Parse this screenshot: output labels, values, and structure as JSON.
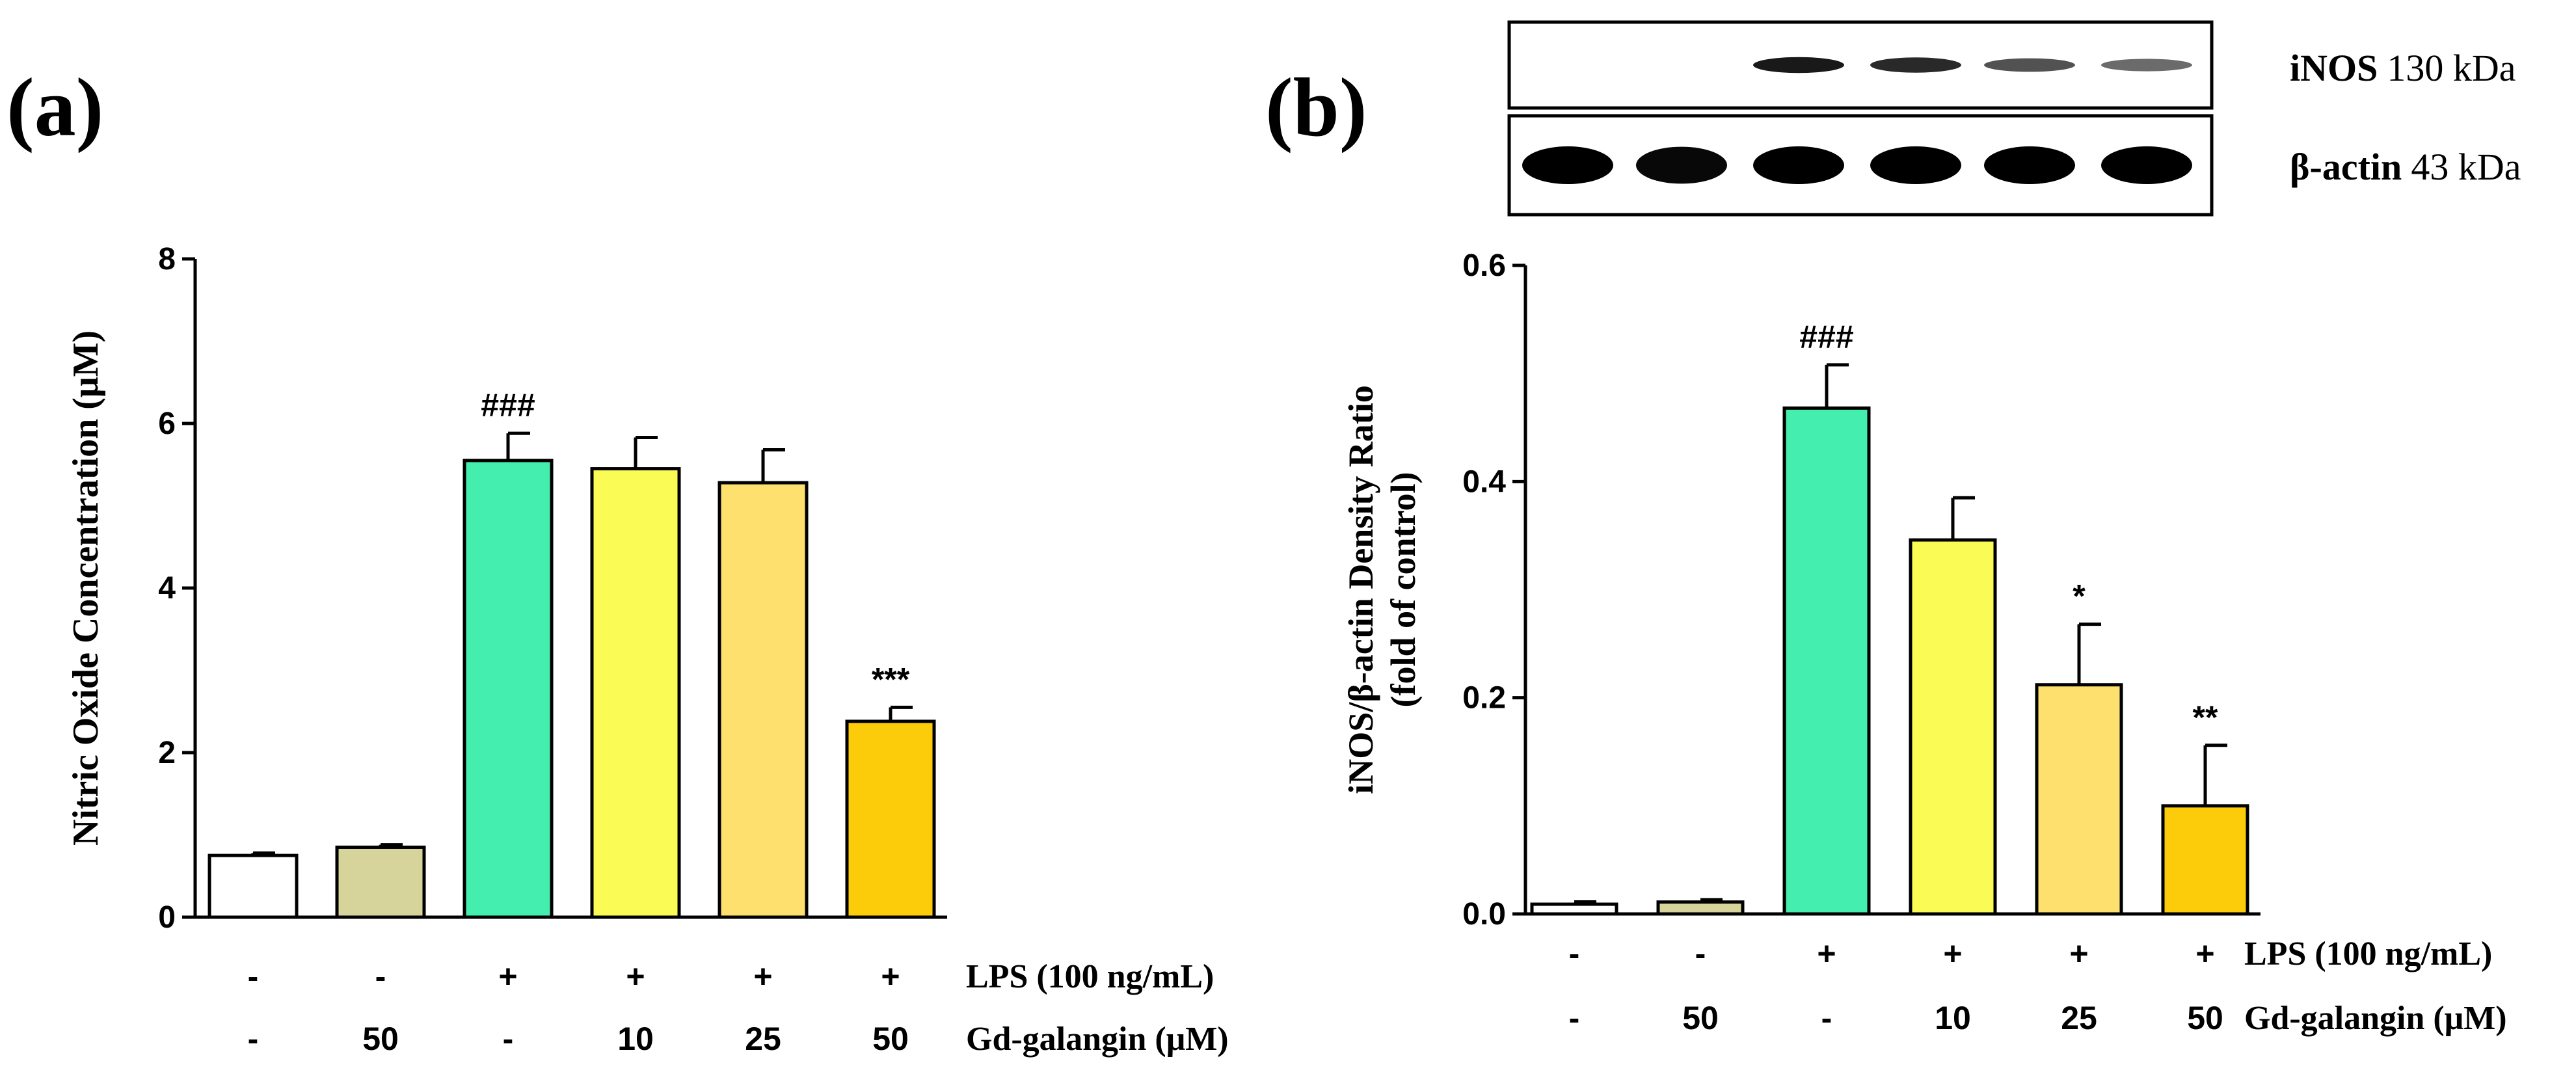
{
  "chart_data": [
    {
      "panel_label": "(a)",
      "type": "bar",
      "ylabel": "Nitric Oxide Concentration (μM)",
      "ylim": [
        0,
        8
      ],
      "yticks": [
        "0",
        "2",
        "4",
        "6",
        "8"
      ],
      "ytick_values": [
        0,
        2,
        4,
        6,
        8
      ],
      "values": [
        0.75,
        0.85,
        5.55,
        5.45,
        5.28,
        2.38
      ],
      "errors": [
        0.03,
        0.03,
        0.33,
        0.38,
        0.4,
        0.17
      ],
      "colors": [
        "#ffffff",
        "#d6d49a",
        "#44eeae",
        "#fbfb55",
        "#fde06e",
        "#fccb0a"
      ],
      "annotations": [
        "",
        "",
        "###",
        "",
        "",
        "***"
      ],
      "treatment_rows": [
        {
          "label": "LPS (100 ng/mL)",
          "values": [
            "-",
            "-",
            "+",
            "+",
            "+",
            "+"
          ]
        },
        {
          "label": "Gd-galangin (μM)",
          "values": [
            "-",
            "50",
            "-",
            "10",
            "25",
            "50"
          ]
        }
      ]
    },
    {
      "panel_label": "(b)",
      "type": "bar",
      "ylabel": "iNOS/β-actin Density Ratio",
      "ylabel2": "(fold of control)",
      "ylim": [
        0,
        0.6
      ],
      "yticks": [
        "0.0",
        "0.2",
        "0.4",
        "0.6"
      ],
      "ytick_values": [
        0,
        0.2,
        0.4,
        0.6
      ],
      "values": [
        0.009,
        0.011,
        0.468,
        0.346,
        0.212,
        0.1
      ],
      "errors": [
        0.0,
        0.0,
        0.04,
        0.039,
        0.056,
        0.056
      ],
      "colors": [
        "#ffffff",
        "#d6d49a",
        "#44eeae",
        "#fbfb55",
        "#fde06e",
        "#fccb0a"
      ],
      "annotations": [
        "",
        "",
        "###",
        "",
        "*",
        "**"
      ],
      "treatment_rows": [
        {
          "label": "LPS (100 ng/mL)",
          "values": [
            "-",
            "-",
            "+",
            "+",
            "+",
            "+"
          ]
        },
        {
          "label": "Gd-galangin (μM)",
          "values": [
            "-",
            "50",
            "-",
            "10",
            "25",
            "50"
          ]
        }
      ],
      "western_blot": {
        "bands": [
          {
            "name": "iNOS",
            "size": "130 kDa",
            "intensities": [
              0.0,
              0.0,
              0.85,
              0.75,
              0.5,
              0.35
            ]
          },
          {
            "name": "β-actin",
            "size": "43 kDa",
            "intensities": [
              1.0,
              0.95,
              1.0,
              1.0,
              1.0,
              1.0
            ]
          }
        ]
      }
    }
  ]
}
